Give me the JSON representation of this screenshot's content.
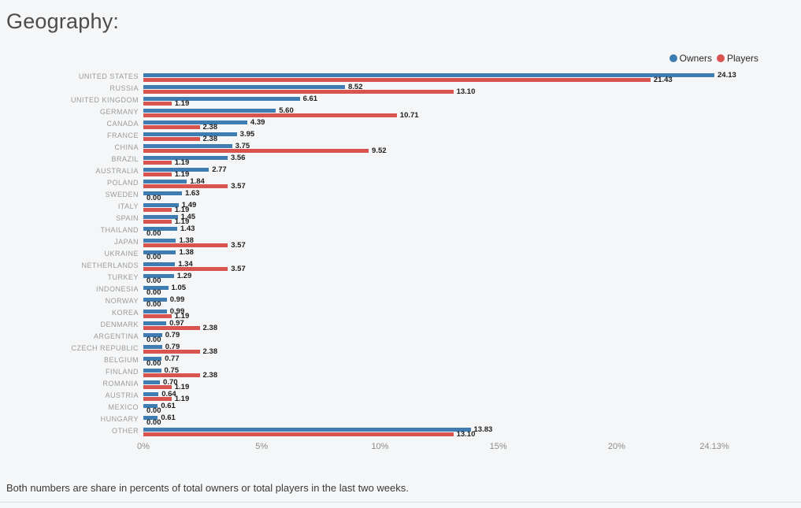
{
  "title": "Geography:",
  "legend": {
    "owners": "Owners",
    "players": "Players"
  },
  "footnote": "Both numbers are share in percents of total owners or total players in the last two weeks.",
  "colors": {
    "owners": "#3e7cb1",
    "players": "#d9534f",
    "value_label": "#1d1d1d",
    "category_label": "#9a9a9a",
    "axis_label": "#8b8b8b",
    "background": "#f5f6f7"
  },
  "chart_data": {
    "type": "bar",
    "orientation": "horizontal",
    "title": "Geography:",
    "legend_position": "top-right",
    "grid": false,
    "categories": [
      "UNITED STATES",
      "RUSSIA",
      "UNITED KINGDOM",
      "GERMANY",
      "CANADA",
      "FRANCE",
      "CHINA",
      "BRAZIL",
      "AUSTRALIA",
      "POLAND",
      "SWEDEN",
      "ITALY",
      "SPAIN",
      "THAILAND",
      "JAPAN",
      "UKRAINE",
      "NETHERLANDS",
      "TURKEY",
      "INDONESIA",
      "NORWAY",
      "KOREA",
      "DENMARK",
      "ARGENTINA",
      "CZECH REPUBLIC",
      "BELGIUM",
      "FINLAND",
      "ROMANIA",
      "AUSTRIA",
      "MEXICO",
      "HUNGARY",
      "OTHER"
    ],
    "series": [
      {
        "name": "Owners",
        "color": "#3e7cb1",
        "values": [
          24.13,
          8.52,
          6.61,
          5.6,
          4.39,
          3.95,
          3.75,
          3.56,
          2.77,
          1.84,
          1.63,
          1.49,
          1.45,
          1.43,
          1.38,
          1.38,
          1.34,
          1.29,
          1.05,
          0.99,
          0.99,
          0.97,
          0.79,
          0.79,
          0.77,
          0.75,
          0.7,
          0.64,
          0.61,
          0.61,
          13.83
        ]
      },
      {
        "name": "Players",
        "color": "#d9534f",
        "values": [
          21.43,
          13.1,
          1.19,
          10.71,
          2.38,
          2.38,
          9.52,
          1.19,
          1.19,
          3.57,
          0.0,
          1.19,
          1.19,
          0.0,
          3.57,
          0.0,
          3.57,
          0.0,
          0.0,
          0.0,
          1.19,
          2.38,
          0.0,
          2.38,
          0.0,
          2.38,
          1.19,
          1.19,
          0.0,
          0.0,
          13.1
        ]
      }
    ],
    "x_axis": {
      "max": 24.13,
      "ticks": [
        {
          "label": "0%",
          "value": 0
        },
        {
          "label": "5%",
          "value": 5
        },
        {
          "label": "10%",
          "value": 10
        },
        {
          "label": "15%",
          "value": 15
        },
        {
          "label": "20%",
          "value": 20
        },
        {
          "label": "24.13%",
          "value": 24.13
        }
      ]
    },
    "value_label_format": "two_decimals"
  }
}
